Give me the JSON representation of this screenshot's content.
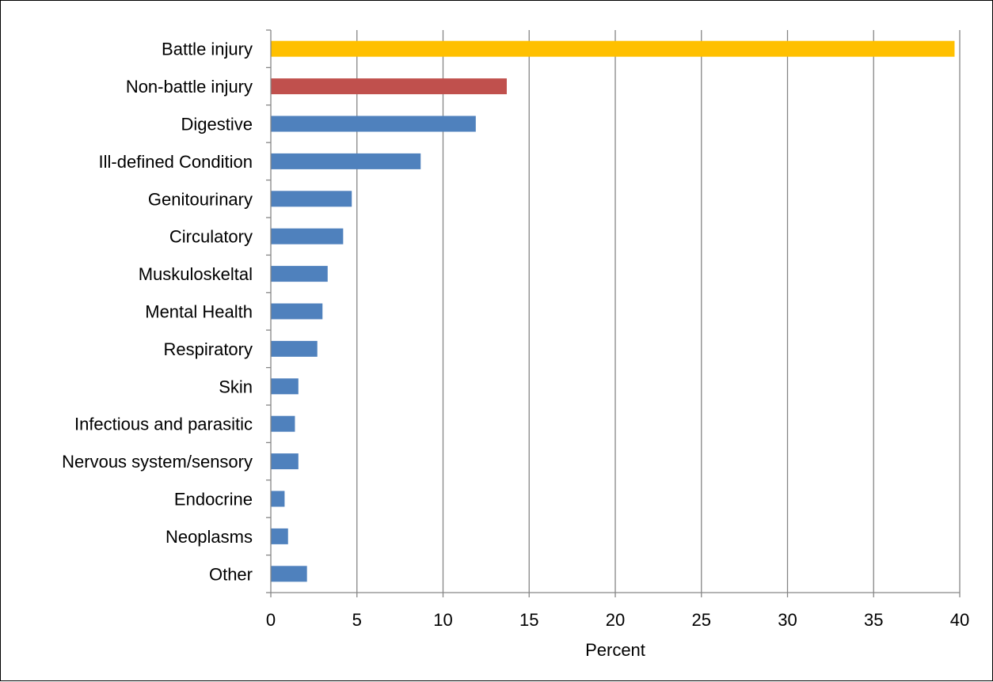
{
  "chart_data": {
    "type": "bar",
    "orientation": "horizontal",
    "categories": [
      "Battle injury",
      "Non-battle injury",
      "Digestive",
      "Ill-defined Condition",
      "Genitourinary",
      "Circulatory",
      "Muskuloskeltal",
      "Mental Health",
      "Respiratory",
      "Skin",
      "Infectious and parasitic",
      "Nervous system/sensory",
      "Endocrine",
      "Neoplasms",
      "Other"
    ],
    "values": [
      39.7,
      13.7,
      11.9,
      8.7,
      4.7,
      4.2,
      3.3,
      3.0,
      2.7,
      1.6,
      1.4,
      1.6,
      0.8,
      1.0,
      2.1
    ],
    "bar_colors": [
      "#FFC000",
      "#C0504D",
      "#4F81BD",
      "#4F81BD",
      "#4F81BD",
      "#4F81BD",
      "#4F81BD",
      "#4F81BD",
      "#4F81BD",
      "#4F81BD",
      "#4F81BD",
      "#4F81BD",
      "#4F81BD",
      "#4F81BD",
      "#4F81BD"
    ],
    "xlabel": "Percent",
    "ylabel": "",
    "title": "",
    "xlim": [
      0,
      40
    ],
    "xticks": [
      0,
      5,
      10,
      15,
      20,
      25,
      30,
      35,
      40
    ],
    "grid": "vertical",
    "grid_color": "#868686",
    "legend": "none"
  }
}
